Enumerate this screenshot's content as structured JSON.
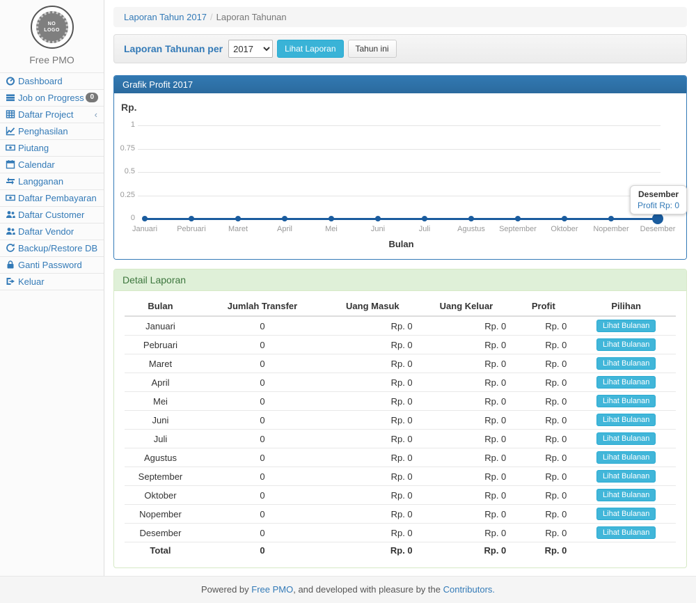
{
  "sidebar": {
    "logo_line1": "NO",
    "logo_line2": "LOGO",
    "brand": "Free PMO",
    "items": [
      {
        "label": "Dashboard",
        "icon": "dashboard-icon"
      },
      {
        "label": "Job on Progress",
        "icon": "tasks-icon",
        "badge": "0"
      },
      {
        "label": "Daftar Project",
        "icon": "table-icon",
        "chevron": "‹"
      },
      {
        "label": "Penghasilan",
        "icon": "line-chart-icon"
      },
      {
        "label": "Piutang",
        "icon": "money-icon"
      },
      {
        "label": "Calendar",
        "icon": "calendar-icon"
      },
      {
        "label": "Langganan",
        "icon": "retweet-icon"
      },
      {
        "label": "Daftar Pembayaran",
        "icon": "money-icon"
      },
      {
        "label": "Daftar Customer",
        "icon": "users-icon"
      },
      {
        "label": "Daftar Vendor",
        "icon": "users-icon"
      },
      {
        "label": "Backup/Restore DB",
        "icon": "refresh-icon"
      },
      {
        "label": "Ganti Password",
        "icon": "lock-icon"
      },
      {
        "label": "Keluar",
        "icon": "sign-out-icon"
      }
    ]
  },
  "breadcrumb": {
    "link": "Laporan Tahun 2017",
    "separator": "/",
    "current": "Laporan Tahunan"
  },
  "filter": {
    "label": "Laporan Tahunan per",
    "year": "2017",
    "view_button": "Lihat Laporan",
    "this_year_button": "Tahun ini"
  },
  "chart_panel": {
    "title": "Grafik Profit 2017"
  },
  "chart_data": {
    "type": "line",
    "title": "Grafik Profit 2017",
    "xlabel": "Bulan",
    "ylabel": "Rp.",
    "x": [
      "Januari",
      "Pebruari",
      "Maret",
      "April",
      "Mei",
      "Juni",
      "Juli",
      "Agustus",
      "September",
      "Oktober",
      "Nopember",
      "Desember"
    ],
    "series": [
      {
        "name": "Profit",
        "values": [
          0,
          0,
          0,
          0,
          0,
          0,
          0,
          0,
          0,
          0,
          0,
          0
        ]
      }
    ],
    "ylim": [
      0,
      1
    ],
    "yticks": [
      0,
      0.25,
      0.5,
      0.75,
      1
    ],
    "grid": true,
    "highlight_index": 11,
    "tooltip": {
      "label": "Desember",
      "value": "Profit Rp: 0"
    },
    "line_color": "#1a5c9e"
  },
  "detail": {
    "title": "Detail Laporan",
    "columns": [
      "Bulan",
      "Jumlah Transfer",
      "Uang Masuk",
      "Uang Keluar",
      "Profit",
      "Pilihan"
    ],
    "action_label": "Lihat Bulanan",
    "rows": [
      {
        "bulan": "Januari",
        "jumlah_transfer": "0",
        "uang_masuk": "Rp. 0",
        "uang_keluar": "Rp. 0",
        "profit": "Rp. 0"
      },
      {
        "bulan": "Pebruari",
        "jumlah_transfer": "0",
        "uang_masuk": "Rp. 0",
        "uang_keluar": "Rp. 0",
        "profit": "Rp. 0"
      },
      {
        "bulan": "Maret",
        "jumlah_transfer": "0",
        "uang_masuk": "Rp. 0",
        "uang_keluar": "Rp. 0",
        "profit": "Rp. 0"
      },
      {
        "bulan": "April",
        "jumlah_transfer": "0",
        "uang_masuk": "Rp. 0",
        "uang_keluar": "Rp. 0",
        "profit": "Rp. 0"
      },
      {
        "bulan": "Mei",
        "jumlah_transfer": "0",
        "uang_masuk": "Rp. 0",
        "uang_keluar": "Rp. 0",
        "profit": "Rp. 0"
      },
      {
        "bulan": "Juni",
        "jumlah_transfer": "0",
        "uang_masuk": "Rp. 0",
        "uang_keluar": "Rp. 0",
        "profit": "Rp. 0"
      },
      {
        "bulan": "Juli",
        "jumlah_transfer": "0",
        "uang_masuk": "Rp. 0",
        "uang_keluar": "Rp. 0",
        "profit": "Rp. 0"
      },
      {
        "bulan": "Agustus",
        "jumlah_transfer": "0",
        "uang_masuk": "Rp. 0",
        "uang_keluar": "Rp. 0",
        "profit": "Rp. 0"
      },
      {
        "bulan": "September",
        "jumlah_transfer": "0",
        "uang_masuk": "Rp. 0",
        "uang_keluar": "Rp. 0",
        "profit": "Rp. 0"
      },
      {
        "bulan": "Oktober",
        "jumlah_transfer": "0",
        "uang_masuk": "Rp. 0",
        "uang_keluar": "Rp. 0",
        "profit": "Rp. 0"
      },
      {
        "bulan": "Nopember",
        "jumlah_transfer": "0",
        "uang_masuk": "Rp. 0",
        "uang_keluar": "Rp. 0",
        "profit": "Rp. 0"
      },
      {
        "bulan": "Desember",
        "jumlah_transfer": "0",
        "uang_masuk": "Rp. 0",
        "uang_keluar": "Rp. 0",
        "profit": "Rp. 0"
      }
    ],
    "total": {
      "bulan": "Total",
      "jumlah_transfer": "0",
      "uang_masuk": "Rp. 0",
      "uang_keluar": "Rp. 0",
      "profit": "Rp. 0"
    }
  },
  "footer": {
    "prefix": "Powered by ",
    "brand_link": "Free PMO",
    "middle": ", and developed with pleasure by the ",
    "contributors_link": "Contributors."
  },
  "colors": {
    "accent": "#337ab7",
    "info_button": "#39b3d7",
    "chart_header": "#2e6da4",
    "success_header_bg": "#dff0d8",
    "success_header_text": "#3c763d",
    "chart_line": "#1a5c9e",
    "badge": "#777777"
  }
}
